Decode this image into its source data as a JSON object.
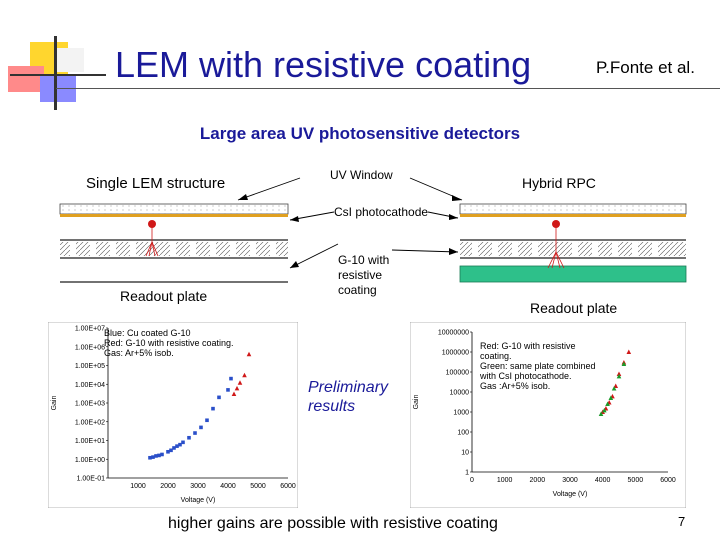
{
  "header": {
    "title": "LEM with resistive coating",
    "author": "P.Fonte et al."
  },
  "subtitle": "Large area UV photosensitive detectors",
  "left_schematic": {
    "label": "Single LEM structure",
    "readout": "Readout plate"
  },
  "right_schematic": {
    "label": "Hybrid RPC",
    "readout": "Readout plate"
  },
  "callouts": {
    "uv_window": "UV Window",
    "csi": "CsI photocathode",
    "g10": "G-10 with resistive coating"
  },
  "preliminary": "Preliminary results",
  "footer": "higher gains are possible with resistive coating",
  "page_number": "7",
  "colors": {
    "title": "#1a1a99",
    "blue_series": "#2a4fc9",
    "red_series": "#d01818",
    "green_series": "#1a9a2a",
    "coating": "#e0a020",
    "readout": "#2ec08a"
  },
  "chart_data": [
    {
      "type": "scatter",
      "ylabel": "Gain",
      "xlabel": "Voltage (V)",
      "y_scale": "log",
      "ytick_labels": [
        "1.00E-01",
        "1.00E+00",
        "1.00E+01",
        "1.00E+02",
        "1.00E+03",
        "1.00E+04",
        "1.00E+05",
        "1.00E+06",
        "1.00E+07"
      ],
      "xtick_labels": [
        "1000",
        "2000",
        "3000",
        "4000",
        "5000",
        "6000"
      ],
      "xlim": [
        0,
        6000
      ],
      "ylim": [
        0.1,
        10000000
      ],
      "legend_text": [
        "Blue: Cu coated G-10",
        "Red: G-10 with resistive coating.",
        "Gas: Ar+5% isob."
      ],
      "series": [
        {
          "color": "blue",
          "marker": "square",
          "x": [
            1400,
            1500,
            1600,
            1700,
            1800,
            2000,
            2100,
            2200,
            2300,
            2400,
            2500,
            2700,
            2900,
            3100,
            3300,
            3500,
            3700,
            4000,
            4100
          ],
          "y": [
            1.2,
            1.3,
            1.5,
            1.6,
            1.8,
            2.5,
            3,
            4,
            5,
            6,
            8,
            14,
            25,
            50,
            120,
            500,
            2000,
            5000,
            20000
          ]
        },
        {
          "color": "red",
          "marker": "triangle",
          "x": [
            4200,
            4300,
            4400,
            4550,
            4700
          ],
          "y": [
            3000,
            6000,
            12000,
            30000,
            400000
          ]
        }
      ]
    },
    {
      "type": "scatter",
      "ylabel": "Gain",
      "xlabel": "Voltage (V)",
      "y_scale": "log",
      "ytick_labels": [
        "1",
        "10",
        "100",
        "1000",
        "10000",
        "100000",
        "1000000",
        "10000000"
      ],
      "xtick_labels": [
        "0",
        "1000",
        "2000",
        "3000",
        "4000",
        "5000",
        "6000"
      ],
      "xlim": [
        0,
        6000
      ],
      "ylim": [
        1,
        10000000
      ],
      "legend_text": [
        "Red: G-10 with resistive coating.",
        "Green: same plate combined with CsI photocathode.",
        "Gas :Ar+5% isob."
      ],
      "series": [
        {
          "color": "red",
          "marker": "triangle",
          "x": [
            4000,
            4100,
            4200,
            4300,
            4400,
            4500,
            4650,
            4800
          ],
          "y": [
            1000,
            1500,
            3000,
            6000,
            20000,
            80000,
            300000,
            1000000
          ]
        },
        {
          "color": "green",
          "marker": "triangle",
          "x": [
            3950,
            4050,
            4150,
            4250,
            4350,
            4500,
            4650
          ],
          "y": [
            800,
            1200,
            2500,
            5000,
            15000,
            60000,
            250000
          ]
        }
      ]
    }
  ]
}
